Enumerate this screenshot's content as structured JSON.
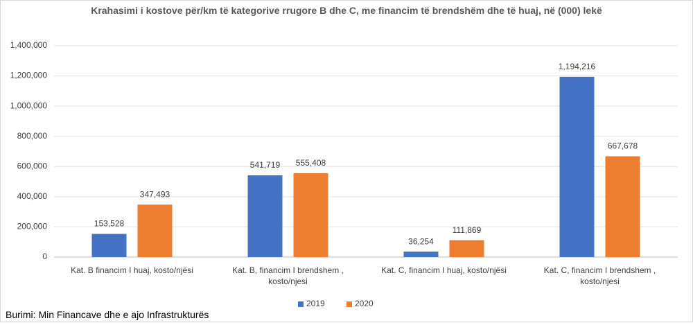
{
  "chart_data": {
    "type": "bar",
    "title": "Krahasimi i kostove për/km të kategorive rrugore B dhe C, me financim të brendshëm dhe të huaj, në (000) lekë",
    "categories": [
      "Kat. B financim I huaj, kosto/njësi",
      "Kat. B, financim I brendshem , kosto/njesi",
      "Kat. C, financim I huaj, kosto/njësi",
      "Kat. C, financim I brendshem , kosto/njesi"
    ],
    "series": [
      {
        "name": "2019",
        "color": "#4472c4",
        "values": [
          153528,
          541719,
          36254,
          1194216
        ],
        "value_labels": [
          "153,528",
          "541,719",
          "36,254",
          "1,194,216"
        ]
      },
      {
        "name": "2020",
        "color": "#ed7d31",
        "values": [
          347493,
          555408,
          111869,
          667678
        ],
        "value_labels": [
          "347,493",
          "555,408",
          "111,869",
          "667,678"
        ]
      }
    ],
    "ylim": [
      0,
      1400000
    ],
    "yticks": [
      0,
      {
        "value": 200000,
        "label": "200,000"
      },
      {
        "value": 400000,
        "label": "400,000"
      },
      {
        "value": 600000,
        "label": "600,000"
      },
      {
        "value": 800000,
        "label": "800,000"
      },
      {
        "value": 1000000,
        "label": "1,000,000"
      },
      {
        "value": 1200000,
        "label": "1,200,000"
      },
      {
        "value": 1400000,
        "label": "1,400,000"
      }
    ],
    "grid": true,
    "legend": "bottom",
    "source": "Burimi: Min Financave dhe e ajo Infrastrukturës"
  }
}
